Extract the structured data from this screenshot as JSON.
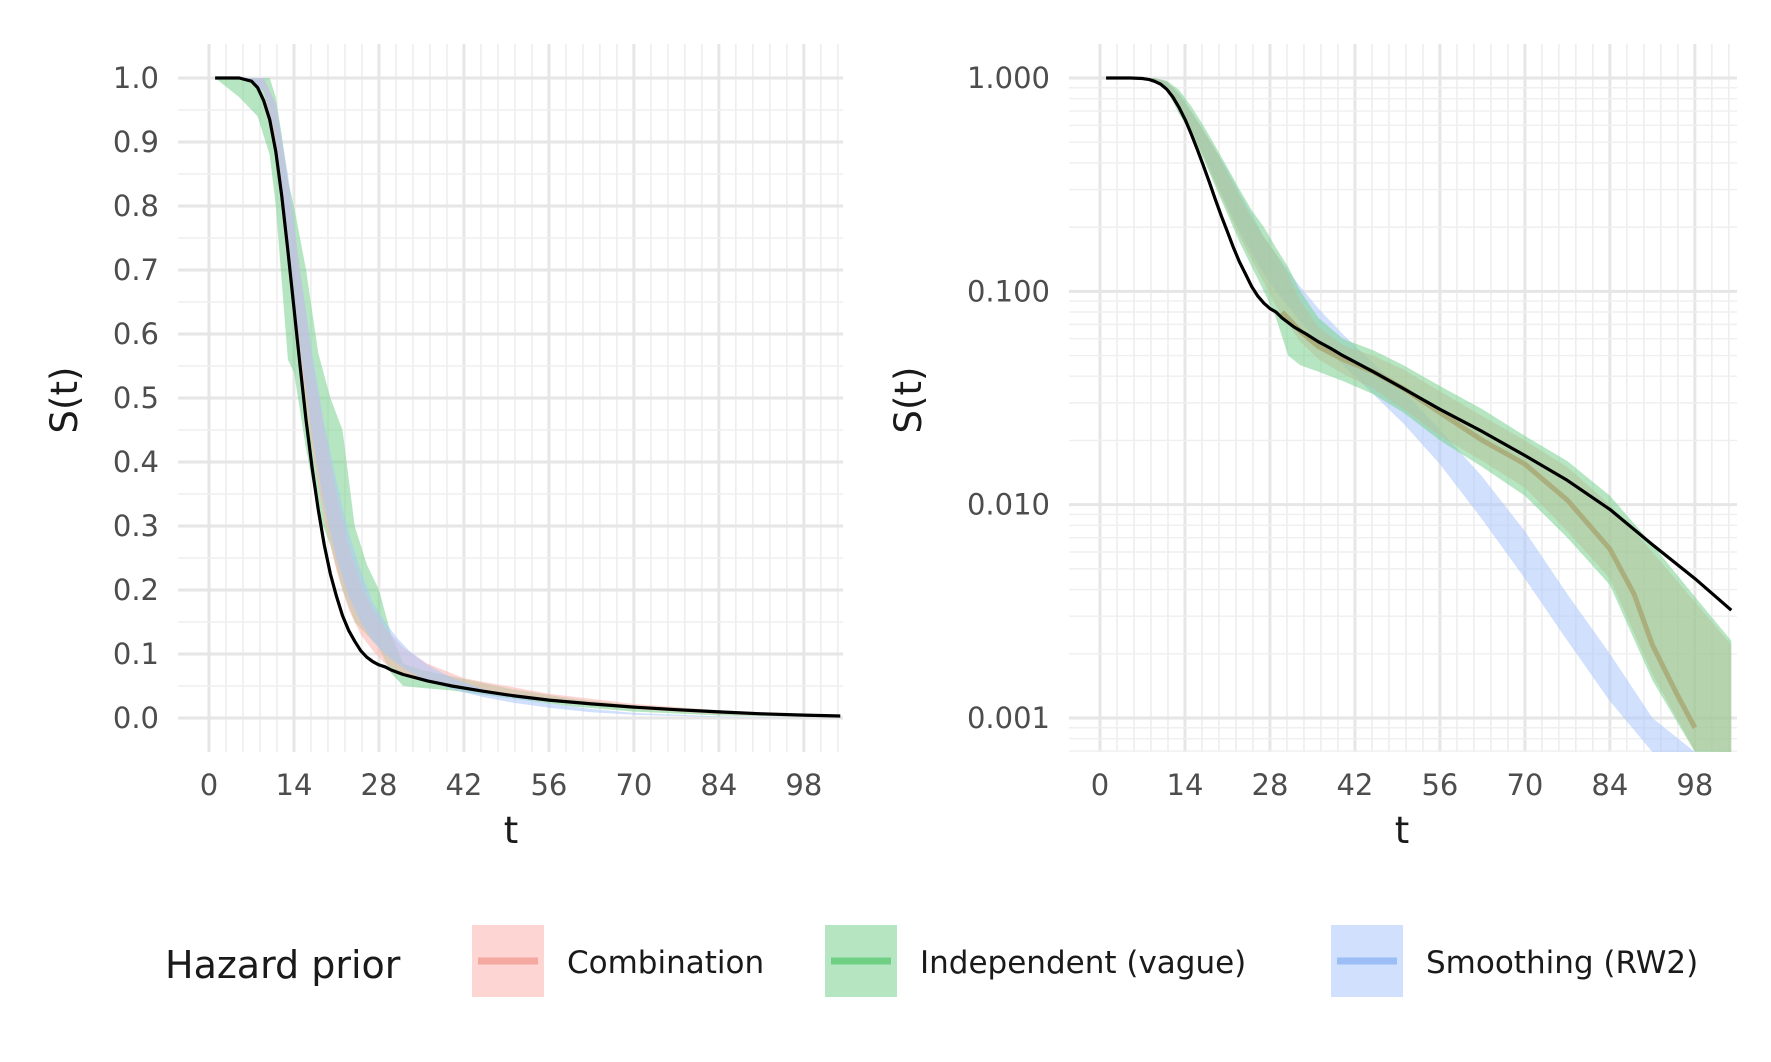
{
  "chart_data": [
    {
      "type": "line",
      "panel": "left",
      "xlabel": "t",
      "ylabel": "S(t)",
      "xlim": [
        0,
        106
      ],
      "ylim": [
        0,
        1.0
      ],
      "yscale": "linear",
      "x_ticks": [
        0,
        14,
        28,
        42,
        56,
        70,
        84,
        98
      ],
      "y_ticks": [
        0.0,
        0.1,
        0.2,
        0.3,
        0.4,
        0.5,
        0.6,
        0.7,
        0.8,
        0.9,
        1.0
      ],
      "y_tick_labels": [
        "0.0",
        "0.1",
        "0.2",
        "0.3",
        "0.4",
        "0.5",
        "0.6",
        "0.7",
        "0.8",
        "0.9",
        "1.0"
      ],
      "grid": true,
      "series": [
        {
          "name": "Independent (vague)",
          "kind": "band",
          "color": "#7ad28e",
          "x": [
            1,
            5,
            8,
            10,
            11,
            12,
            13,
            14,
            16,
            18,
            20,
            22,
            24,
            26,
            28,
            30,
            32,
            35,
            40,
            50,
            60,
            70,
            84,
            98,
            104
          ],
          "lower": [
            1.0,
            0.97,
            0.94,
            0.88,
            0.8,
            0.68,
            0.56,
            0.54,
            0.42,
            0.32,
            0.27,
            0.2,
            0.15,
            0.13,
            0.11,
            0.07,
            0.05,
            0.047,
            0.043,
            0.03,
            0.018,
            0.01,
            0.004,
            0.002,
            0.001
          ],
          "upper": [
            1.0,
            1.0,
            1.0,
            1.0,
            0.97,
            0.91,
            0.84,
            0.8,
            0.7,
            0.57,
            0.5,
            0.45,
            0.3,
            0.24,
            0.2,
            0.13,
            0.085,
            0.075,
            0.065,
            0.045,
            0.03,
            0.02,
            0.012,
            0.006,
            0.003
          ]
        },
        {
          "name": "Combination",
          "kind": "band",
          "color": "#fbb4ae",
          "x": [
            1,
            6,
            9,
            11,
            13,
            15,
            17,
            19,
            21,
            23,
            25,
            27,
            29,
            32,
            36,
            42,
            56,
            70,
            84,
            98,
            104
          ],
          "lower": [
            1.0,
            1.0,
            0.98,
            0.9,
            0.72,
            0.56,
            0.42,
            0.31,
            0.23,
            0.17,
            0.13,
            0.105,
            0.085,
            0.07,
            0.058,
            0.047,
            0.028,
            0.014,
            0.006,
            0.002,
            0.001
          ],
          "upper": [
            1.0,
            1.0,
            1.0,
            0.96,
            0.84,
            0.7,
            0.56,
            0.45,
            0.35,
            0.27,
            0.21,
            0.17,
            0.14,
            0.11,
            0.085,
            0.062,
            0.038,
            0.022,
            0.012,
            0.006,
            0.003
          ]
        },
        {
          "name": "Smoothing (RW2)",
          "kind": "band",
          "color": "#a9c6fb",
          "x": [
            1,
            6,
            9,
            11,
            13,
            15,
            17,
            19,
            21,
            23,
            25,
            27,
            29,
            31,
            33,
            36,
            40,
            45,
            50,
            56,
            63,
            70,
            84,
            98,
            104
          ],
          "lower": [
            1.0,
            1.0,
            0.98,
            0.91,
            0.75,
            0.58,
            0.44,
            0.33,
            0.25,
            0.19,
            0.15,
            0.12,
            0.1,
            0.085,
            0.072,
            0.058,
            0.045,
            0.033,
            0.024,
            0.016,
            0.009,
            0.005,
            0.0015,
            0.0004,
            0.0002
          ],
          "upper": [
            1.0,
            1.0,
            1.0,
            0.96,
            0.85,
            0.7,
            0.57,
            0.46,
            0.37,
            0.29,
            0.23,
            0.18,
            0.15,
            0.125,
            0.105,
            0.083,
            0.063,
            0.046,
            0.034,
            0.023,
            0.014,
            0.008,
            0.0025,
            0.0007,
            0.0003
          ]
        },
        {
          "name": "true",
          "kind": "line",
          "color": "#000000",
          "x": [
            1,
            5,
            7,
            8,
            9,
            10,
            11,
            12,
            13,
            14,
            15,
            16,
            17,
            18,
            19,
            20,
            21,
            22,
            23,
            24,
            25,
            26,
            27,
            28,
            29,
            30,
            32,
            34,
            36,
            38,
            40,
            45,
            50,
            56,
            63,
            70,
            77,
            84,
            91,
            98,
            104
          ],
          "y": [
            1.0,
            1.0,
            0.995,
            0.985,
            0.965,
            0.935,
            0.885,
            0.815,
            0.73,
            0.64,
            0.55,
            0.465,
            0.39,
            0.325,
            0.27,
            0.225,
            0.19,
            0.16,
            0.137,
            0.12,
            0.105,
            0.095,
            0.088,
            0.083,
            0.08,
            0.075,
            0.068,
            0.063,
            0.058,
            0.054,
            0.05,
            0.042,
            0.035,
            0.028,
            0.022,
            0.017,
            0.013,
            0.0095,
            0.0065,
            0.0045,
            0.0032
          ]
        }
      ]
    },
    {
      "type": "line",
      "panel": "right",
      "xlabel": "t",
      "ylabel": "S(t)",
      "xlim": [
        0,
        106
      ],
      "ylim": [
        0.001,
        1.0
      ],
      "yscale": "log",
      "x_ticks": [
        0,
        14,
        28,
        42,
        56,
        70,
        84,
        98
      ],
      "y_ticks": [
        0.001,
        0.01,
        0.1,
        1.0
      ],
      "y_tick_labels": [
        "0.001",
        "0.010",
        "0.100",
        "1.000"
      ],
      "grid": true,
      "series": [
        {
          "name": "Smoothing (RW2)",
          "kind": "band",
          "color": "#a9c6fb",
          "x": [
            1,
            6,
            9,
            11,
            13,
            15,
            17,
            19,
            21,
            23,
            25,
            27,
            29,
            31,
            33,
            36,
            40,
            45,
            50,
            56,
            63,
            70,
            77,
            84,
            91,
            98,
            104
          ],
          "lower": [
            1.0,
            1.0,
            0.98,
            0.91,
            0.75,
            0.58,
            0.44,
            0.33,
            0.25,
            0.19,
            0.15,
            0.12,
            0.1,
            0.085,
            0.072,
            0.058,
            0.045,
            0.033,
            0.024,
            0.0155,
            0.0085,
            0.0045,
            0.0023,
            0.0012,
            0.0006,
            0.0003,
            0.0002
          ],
          "upper": [
            1.0,
            1.0,
            1.0,
            0.96,
            0.85,
            0.7,
            0.57,
            0.46,
            0.37,
            0.29,
            0.23,
            0.18,
            0.15,
            0.125,
            0.105,
            0.083,
            0.063,
            0.046,
            0.034,
            0.0225,
            0.0135,
            0.0075,
            0.0038,
            0.002,
            0.001,
            0.0005,
            0.0003
          ]
        },
        {
          "name": "Combination",
          "kind": "band",
          "color": "#fbb4ae",
          "x": [
            1,
            6,
            9,
            11,
            13,
            15,
            17,
            19,
            21,
            23,
            25,
            27,
            29,
            31,
            33,
            36,
            40,
            45,
            50,
            56,
            63,
            70,
            77,
            84,
            91,
            98,
            104
          ],
          "lower": [
            1.0,
            1.0,
            0.98,
            0.9,
            0.72,
            0.56,
            0.43,
            0.32,
            0.24,
            0.18,
            0.14,
            0.11,
            0.085,
            0.07,
            0.058,
            0.048,
            0.041,
            0.035,
            0.028,
            0.021,
            0.016,
            0.012,
            0.0075,
            0.0045,
            0.0016,
            0.0007,
            0.0004
          ],
          "upper": [
            1.0,
            1.0,
            1.0,
            0.96,
            0.84,
            0.7,
            0.57,
            0.46,
            0.36,
            0.28,
            0.22,
            0.18,
            0.15,
            0.12,
            0.09,
            0.068,
            0.056,
            0.05,
            0.043,
            0.034,
            0.026,
            0.02,
            0.015,
            0.01,
            0.006,
            0.0035,
            0.0022
          ]
        },
        {
          "name": "Independent (vague)",
          "kind": "band",
          "color": "#7ad28e",
          "x": [
            1,
            6,
            9,
            11,
            13,
            15,
            17,
            19,
            21,
            23,
            25,
            27,
            29,
            31,
            33,
            36,
            40,
            45,
            50,
            56,
            63,
            70,
            77,
            84,
            91,
            98,
            104
          ],
          "lower": [
            1.0,
            1.0,
            0.98,
            0.88,
            0.68,
            0.55,
            0.42,
            0.31,
            0.23,
            0.17,
            0.13,
            0.1,
            0.075,
            0.05,
            0.045,
            0.042,
            0.038,
            0.033,
            0.027,
            0.02,
            0.015,
            0.011,
            0.007,
            0.0042,
            0.0015,
            0.0006,
            0.0004
          ],
          "upper": [
            1.0,
            1.0,
            1.0,
            0.97,
            0.88,
            0.74,
            0.6,
            0.48,
            0.38,
            0.3,
            0.24,
            0.2,
            0.16,
            0.13,
            0.1,
            0.075,
            0.06,
            0.053,
            0.045,
            0.036,
            0.028,
            0.021,
            0.016,
            0.011,
            0.0065,
            0.0037,
            0.0023
          ]
        },
        {
          "name": "Independent (vague) median",
          "kind": "line",
          "color": "#a8a874",
          "x": [
            30,
            33,
            36,
            40,
            45,
            50,
            56,
            63,
            70,
            77,
            84,
            88,
            91,
            95,
            98,
            104
          ],
          "y": [
            0.08,
            0.065,
            0.055,
            0.048,
            0.042,
            0.035,
            0.027,
            0.02,
            0.0155,
            0.0105,
            0.0062,
            0.0038,
            0.0022,
            0.0013,
            0.0009,
            0.0006
          ]
        },
        {
          "name": "true",
          "kind": "line",
          "color": "#000000",
          "x": [
            1,
            5,
            7,
            8,
            9,
            10,
            11,
            12,
            13,
            14,
            15,
            16,
            17,
            18,
            19,
            20,
            21,
            22,
            23,
            24,
            25,
            26,
            27,
            28,
            29,
            30,
            32,
            34,
            36,
            38,
            40,
            45,
            50,
            56,
            63,
            70,
            77,
            84,
            91,
            98,
            104
          ],
          "y": [
            1.0,
            1.0,
            0.995,
            0.985,
            0.965,
            0.935,
            0.885,
            0.815,
            0.73,
            0.64,
            0.55,
            0.465,
            0.39,
            0.325,
            0.27,
            0.225,
            0.19,
            0.16,
            0.137,
            0.12,
            0.105,
            0.095,
            0.088,
            0.083,
            0.08,
            0.075,
            0.068,
            0.063,
            0.058,
            0.054,
            0.05,
            0.042,
            0.035,
            0.028,
            0.022,
            0.017,
            0.013,
            0.0095,
            0.0065,
            0.0045,
            0.0032
          ]
        }
      ]
    }
  ],
  "legend": {
    "title": "Hazard prior",
    "placement": "bottom",
    "items": [
      {
        "label": "Combination",
        "fill": "#fbb4ae",
        "line": "#f4a8a0"
      },
      {
        "label": "Independent (vague)",
        "fill": "#7ad28e",
        "line": "#6fcf85"
      },
      {
        "label": "Smoothing (RW2)",
        "fill": "#a9c6fb",
        "line": "#9dbdf7"
      }
    ]
  }
}
